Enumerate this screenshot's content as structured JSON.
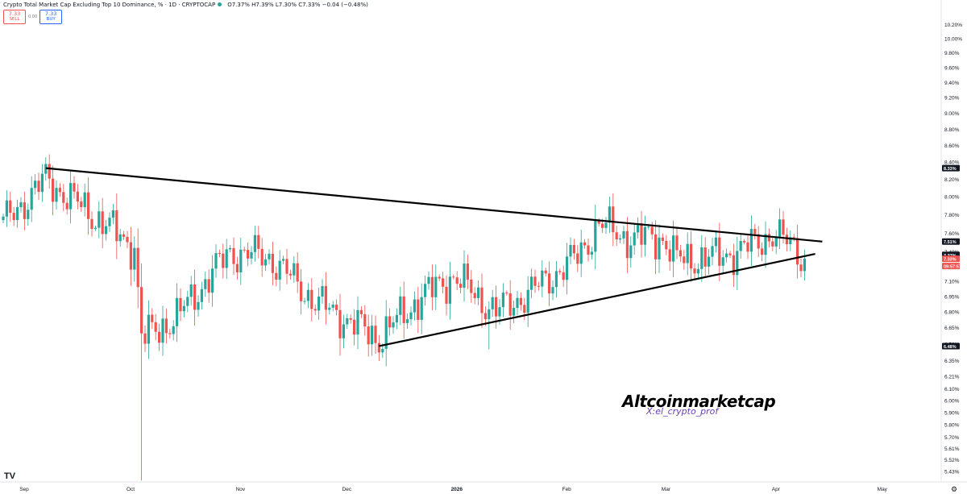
{
  "header": {
    "title": "Crypto Total Market Cap Excluding Top 10 Dominance, % · 1D · CRYPTOCAP",
    "ohlc": "O7.37% H7.39% L7.30% C7.33% −0.04 (−0.48%)",
    "sell_price": "7.33",
    "sell_label": "SELL",
    "spread": "0.00",
    "buy_price": "7.33",
    "buy_label": "BUY"
  },
  "watermark": {
    "title": "Altcoinmarketcap",
    "handle": "X:el_crypto_prof"
  },
  "colors": {
    "up": "#26a69a",
    "down": "#ef5350",
    "trendline": "#000000",
    "watermark_handle": "#6a3fb5"
  },
  "icons": [
    "tradingview-logo-icon",
    "settings-gear-icon"
  ],
  "chart_data": {
    "type": "candlestick",
    "y_scale": "log",
    "ylim": [
      5.35,
      10.5
    ],
    "y_ticks": [
      "5.43%",
      "5.52%",
      "5.61%",
      "5.70%",
      "5.80%",
      "5.90%",
      "6.00%",
      "6.10%",
      "6.21%",
      "6.35%",
      "6.50%",
      "6.65%",
      "6.80%",
      "6.95%",
      "7.10%",
      "7.40%",
      "7.60%",
      "7.80%",
      "8.00%",
      "8.20%",
      "8.40%",
      "8.60%",
      "8.80%",
      "9.00%",
      "9.20%",
      "9.40%",
      "9.60%",
      "9.80%",
      "10.00%",
      "10.20%"
    ],
    "y_tick_values": [
      5.43,
      5.52,
      5.61,
      5.7,
      5.8,
      5.9,
      6.0,
      6.1,
      6.21,
      6.35,
      6.5,
      6.65,
      6.8,
      6.95,
      7.1,
      7.4,
      7.6,
      7.8,
      8.0,
      8.2,
      8.4,
      8.6,
      8.8,
      9.0,
      9.2,
      9.4,
      9.6,
      9.8,
      10.0,
      10.2
    ],
    "x_labels": [
      "Sep",
      "Oct",
      "Nov",
      "Dec",
      "2026",
      "Feb",
      "Mar",
      "Apr",
      "May"
    ],
    "x_label_days": [
      0,
      30,
      61,
      91,
      122,
      153,
      181,
      212,
      242
    ],
    "last_day": 226,
    "price_badges": [
      {
        "text": "8.33%",
        "value": 8.33,
        "style": "dark"
      },
      {
        "text": "7.51%",
        "value": 7.51,
        "style": "dark"
      },
      {
        "text": "7.37%",
        "value": 7.37,
        "style": "dark"
      },
      {
        "text": "7.33%",
        "value": 7.33,
        "style": "red"
      },
      {
        "text": "09:57:57",
        "value": 7.255,
        "style": "red"
      },
      {
        "text": "6.48%",
        "value": 6.48,
        "style": "dark"
      }
    ],
    "trendlines": [
      {
        "name": "upper",
        "points": [
          [
            "2025-09-13",
            8.33
          ],
          [
            "2026-04-20",
            7.51
          ]
        ]
      },
      {
        "name": "lower",
        "points": [
          [
            "2025-12-16",
            6.48
          ],
          [
            "2026-04-18",
            7.38
          ]
        ]
      }
    ],
    "key_points": [
      {
        "date": "2025-09-01",
        "close": 7.7
      },
      {
        "date": "2025-09-13",
        "close": 8.2
      },
      {
        "date": "2025-09-21",
        "close": 7.95
      },
      {
        "date": "2025-10-08",
        "close": 7.45
      },
      {
        "date": "2025-10-10",
        "close": 6.55
      },
      {
        "date": "2025-10-20",
        "close": 6.75
      },
      {
        "date": "2025-11-04",
        "close": 7.4
      },
      {
        "date": "2025-11-15",
        "close": 7.35
      },
      {
        "date": "2025-11-28",
        "close": 6.9
      },
      {
        "date": "2025-12-16",
        "close": 6.55
      },
      {
        "date": "2025-12-28",
        "close": 6.95
      },
      {
        "date": "2026-01-06",
        "close": 7.15
      },
      {
        "date": "2026-01-18",
        "close": 6.8
      },
      {
        "date": "2026-01-28",
        "close": 7.0
      },
      {
        "date": "2026-02-10",
        "close": 7.35
      },
      {
        "date": "2026-02-16",
        "close": 7.7
      },
      {
        "date": "2026-02-24",
        "close": 7.55
      },
      {
        "date": "2026-03-06",
        "close": 7.55
      },
      {
        "date": "2026-03-10",
        "close": 7.32
      },
      {
        "date": "2026-03-22",
        "close": 7.35
      },
      {
        "date": "2026-04-01",
        "close": 7.48
      },
      {
        "date": "2026-04-06",
        "close": 7.6
      },
      {
        "date": "2026-04-12",
        "close": 7.45
      },
      {
        "date": "2026-04-15",
        "close": 7.33
      }
    ],
    "grid": false,
    "legend": "none"
  }
}
